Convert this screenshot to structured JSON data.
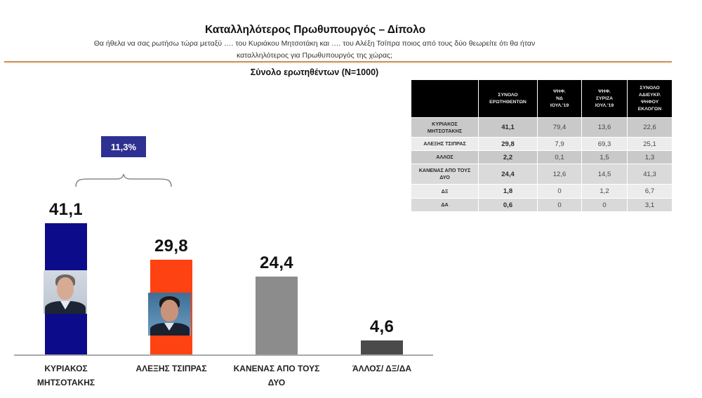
{
  "header": {
    "title": "Καταλληλότερος Πρωθυπουργός – Δίπολο",
    "question_line1": "Θα ήθελα να σας ρωτήσω τώρα μεταξύ …. του Κυριάκου Μητσοτάκη και …. του  Αλέξη Τσίπρα ποιος από τους δύο θεωρείτε ότι θα ήταν",
    "question_line2": "καταλληλότερος για Πρωθυπουργός της χώρας;",
    "base": "Σύνολο ερωτηθέντων (N=1000)"
  },
  "colors": {
    "mitsotakis": "#0c0c8a",
    "tsipras": "#ff4212",
    "none": "#8c8c8c",
    "other": "#4a4a4a",
    "annotation": "#2e3192",
    "rule": "#c9935c",
    "table_header": "#000000"
  },
  "chart_data": [
    {
      "type": "bar",
      "title": "Καταλληλότερος Πρωθυπουργός – Δίπολο",
      "subtitle": "Σύνολο ερωτηθέντων (N=1000)",
      "xlabel": "",
      "ylabel": "",
      "grid": false,
      "categories": [
        "ΚΥΡΙΑΚΟΣ ΜΗΤΣΟΤΑΚΗΣ",
        "ΑΛΕΞΗΣ ΤΣΙΠΡΑΣ",
        "ΚΑΝΕΝΑΣ ΑΠΟ ΤΟΥΣ ΔΥΟ",
        "ΆΛΛΟΣ/ ΔΞ/ΔΑ"
      ],
      "category_labels": [
        "ΚΥΡΙΑΚΟΣ\nΜΗΤΣΟΤΑΚΗΣ",
        "ΑΛΕΞΗΣ ΤΣΙΠΡΑΣ",
        "ΚΑΝΕΝΑΣ ΑΠΟ ΤΟΥΣ\nΔΥΟ",
        "ΆΛΛΟΣ/ ΔΞ/ΔΑ"
      ],
      "values": [
        41.1,
        29.8,
        24.4,
        4.6
      ],
      "value_labels": [
        "41,1",
        "29,8",
        "24,4",
        "4,6"
      ],
      "bar_colors": [
        "#0c0c8a",
        "#ff4212",
        "#8c8c8c",
        "#4a4a4a"
      ],
      "annotations": [
        {
          "text": "11,3%",
          "type": "difference-brace",
          "between": [
            "ΚΥΡΙΑΚΟΣ ΜΗΤΣΟΤΑΚΗΣ",
            "ΑΛΕΞΗΣ ΤΣΙΠΡΑΣ"
          ]
        }
      ],
      "ylim": [
        0,
        45
      ]
    },
    {
      "type": "table",
      "columns": [
        "",
        "ΣΥΝΟΛΟ\nΕΡΩΤΗΘΕΝΤΩΝ",
        "ΨΗΦ.\nΝΔ\nΙΟΥΛ.'19",
        "ΨΗΦ.\nΣΥΡΙΖΑ\nΙΟΥΛ.'19",
        "ΣΥΝΟΛΟ\nΑΔΙΕΥΚΡ.\nΨΗΦΟΥ\nΕΚΛΟΓΩΝ"
      ],
      "rows": [
        {
          "label": "ΚΥΡΙΑΚΟΣ\nΜΗΤΣΟΤΑΚΗΣ",
          "values": [
            "41,1",
            "79,4",
            "13,6",
            "22,6"
          ]
        },
        {
          "label": "ΑΛΕΞΗΣ ΤΣΙΠΡΑΣ",
          "values": [
            "29,8",
            "7,9",
            "69,3",
            "25,1"
          ]
        },
        {
          "label": "ΑΛΛΟΣ",
          "values": [
            "2,2",
            "0,1",
            "1,5",
            "1,3"
          ]
        },
        {
          "label": "ΚΑΝΕΝΑΣ ΑΠΟ ΤΟΥΣ\nΔΥΟ",
          "values": [
            "24,4",
            "12,6",
            "14,5",
            "41,3"
          ]
        },
        {
          "label": "ΔΞ",
          "values": [
            "1,8",
            "0",
            "1,2",
            "6,7"
          ]
        },
        {
          "label": "ΔΑ",
          "values": [
            "0,6",
            "0",
            "0",
            "3,1"
          ]
        }
      ]
    }
  ]
}
